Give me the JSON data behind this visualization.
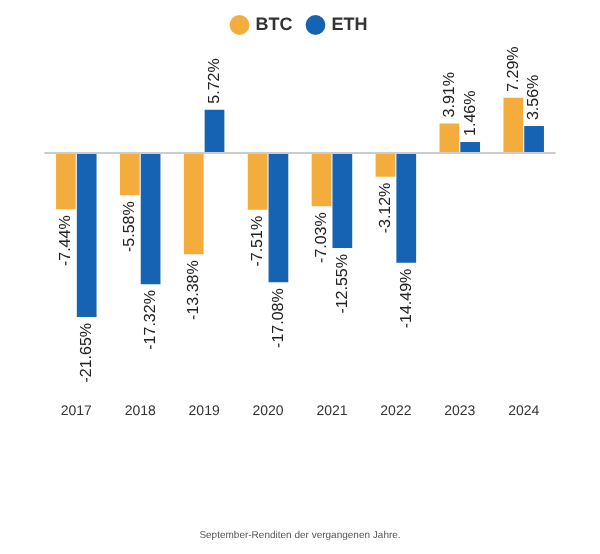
{
  "chart_data": {
    "type": "bar",
    "categories": [
      "2017",
      "2018",
      "2019",
      "2020",
      "2021",
      "2022",
      "2023",
      "2024"
    ],
    "series": [
      {
        "name": "BTC",
        "color": "#f4ad3d",
        "values": [
          -7.44,
          -5.58,
          -13.38,
          -7.51,
          -7.03,
          -3.12,
          3.91,
          7.29
        ],
        "value_labels": [
          "-7.44%",
          "-5.58%",
          "-13.38%",
          "-7.51%",
          "-7.03%",
          "-3.12%",
          "3.91%",
          "7.29%"
        ]
      },
      {
        "name": "ETH",
        "color": "#1763b3",
        "values": [
          -21.65,
          -17.32,
          5.72,
          -17.08,
          -12.55,
          -14.49,
          1.46,
          3.56
        ],
        "value_labels": [
          "-21.65%",
          "-17.32%",
          "5.72%",
          "-17.08%",
          "-12.55%",
          "-14.49%",
          "1.46%",
          "3.56%"
        ]
      }
    ],
    "legend": "top",
    "grid": false,
    "tick_labels": "x",
    "annotations": [
      "September-Renditen der vergangenen Jahre."
    ]
  }
}
